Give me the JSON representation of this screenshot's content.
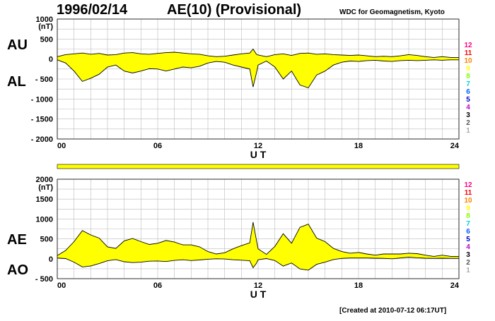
{
  "header": {
    "date": "1996/02/14",
    "title": "AE(10) (Provisional)",
    "source": "WDC for Geomagnetism, Kyoto"
  },
  "footer": {
    "created": "[Created at 2010-07-12 06:17UT]"
  },
  "station_labels": [
    "12",
    "11",
    "10",
    "9",
    "8",
    "7",
    "6",
    "5",
    "4",
    "3",
    "2",
    "1"
  ],
  "colors": {
    "fill": "#ffff00",
    "line": "#000000",
    "grid": "#bbbbbb",
    "station_colors": [
      "#ff0080",
      "#ff0000",
      "#ff8000",
      "#ffff00",
      "#80ff00",
      "#00d0d0",
      "#0060ff",
      "#0000c0",
      "#c000c0",
      "#000000",
      "#555555",
      "#aaaaaa"
    ]
  },
  "chart_data": [
    {
      "type": "area",
      "units_label": "(nT)",
      "xlabel": "U T",
      "xticks": [
        "00",
        "06",
        "12",
        "18",
        "24"
      ],
      "xlim": [
        0,
        24
      ],
      "ylim": [
        -2000,
        1000
      ],
      "yticks": [
        "1000",
        "500",
        "0",
        "- 500",
        "- 1000",
        "- 1500",
        "- 2000"
      ],
      "ytick_values": [
        1000,
        500,
        0,
        -500,
        -1000,
        -1500,
        -2000
      ],
      "series_labels": [
        "AU",
        "AL"
      ],
      "upper": {
        "name": "AU",
        "x": [
          0,
          0.5,
          1,
          1.5,
          2,
          2.5,
          3,
          3.5,
          4,
          4.5,
          5,
          5.5,
          6,
          6.5,
          7,
          7.5,
          8,
          8.5,
          9,
          9.5,
          10,
          10.5,
          11,
          11.5,
          11.7,
          11.9,
          12,
          12.5,
          13,
          13.5,
          14,
          14.5,
          15,
          15.5,
          16,
          16.5,
          17,
          17.5,
          18,
          18.5,
          19,
          19.5,
          20,
          20.5,
          21,
          21.5,
          22,
          22.5,
          23,
          23.5,
          24
        ],
        "y": [
          60,
          110,
          130,
          150,
          120,
          140,
          100,
          110,
          150,
          160,
          130,
          120,
          140,
          160,
          170,
          150,
          130,
          120,
          80,
          60,
          70,
          100,
          130,
          150,
          250,
          120,
          100,
          60,
          110,
          130,
          90,
          140,
          150,
          120,
          130,
          110,
          100,
          90,
          100,
          80,
          60,
          70,
          60,
          80,
          110,
          90,
          60,
          40,
          60,
          40,
          40
        ]
      },
      "lower": {
        "name": "AL",
        "x": [
          0,
          0.5,
          1,
          1.5,
          2,
          2.5,
          3,
          3.5,
          4,
          4.5,
          5,
          5.5,
          6,
          6.5,
          7,
          7.5,
          8,
          8.5,
          9,
          9.5,
          10,
          10.5,
          11,
          11.5,
          11.7,
          11.9,
          12,
          12.5,
          13,
          13.5,
          14,
          14.5,
          15,
          15.5,
          16,
          16.5,
          17,
          17.5,
          18,
          18.5,
          19,
          19.5,
          20,
          20.5,
          21,
          21.5,
          22,
          22.5,
          23,
          23.5,
          24
        ],
        "y": [
          -20,
          -100,
          -300,
          -560,
          -480,
          -380,
          -200,
          -150,
          -300,
          -350,
          -300,
          -240,
          -250,
          -300,
          -250,
          -200,
          -220,
          -180,
          -100,
          -60,
          -80,
          -150,
          -200,
          -250,
          -700,
          -350,
          -150,
          -50,
          -200,
          -500,
          -300,
          -650,
          -720,
          -400,
          -300,
          -150,
          -80,
          -50,
          -60,
          -40,
          -30,
          -50,
          -60,
          -40,
          -30,
          -40,
          -30,
          -20,
          -30,
          -20,
          -20
        ]
      }
    },
    {
      "type": "area",
      "units_label": "(nT)",
      "xlabel": "U T",
      "xticks": [
        "00",
        "06",
        "12",
        "18",
        "24"
      ],
      "xlim": [
        0,
        24
      ],
      "ylim": [
        -500,
        2000
      ],
      "yticks": [
        "2000",
        "1500",
        "1000",
        "500",
        "0",
        "- 500"
      ],
      "ytick_values": [
        2000,
        1500,
        1000,
        500,
        0,
        -500
      ],
      "series_labels": [
        "AE",
        "AO"
      ],
      "upper": {
        "name": "AE",
        "x": [
          0,
          0.5,
          1,
          1.5,
          2,
          2.5,
          3,
          3.5,
          4,
          4.5,
          5,
          5.5,
          6,
          6.5,
          7,
          7.5,
          8,
          8.5,
          9,
          9.5,
          10,
          10.5,
          11,
          11.5,
          11.7,
          11.9,
          12,
          12.5,
          13,
          13.5,
          14,
          14.5,
          15,
          15.5,
          16,
          16.5,
          17,
          17.5,
          18,
          18.5,
          19,
          19.5,
          20,
          20.5,
          21,
          21.5,
          22,
          22.5,
          23,
          23.5,
          24
        ],
        "y": [
          80,
          210,
          430,
          710,
          600,
          520,
          300,
          260,
          450,
          510,
          430,
          360,
          390,
          460,
          420,
          350,
          350,
          300,
          180,
          120,
          150,
          250,
          330,
          400,
          920,
          470,
          250,
          110,
          310,
          630,
          390,
          790,
          870,
          520,
          430,
          260,
          180,
          140,
          160,
          120,
          90,
          120,
          120,
          120,
          140,
          130,
          90,
          60,
          90,
          60,
          60
        ]
      },
      "lower": {
        "name": "AO",
        "x": [
          0,
          0.5,
          1,
          1.5,
          2,
          2.5,
          3,
          3.5,
          4,
          4.5,
          5,
          5.5,
          6,
          6.5,
          7,
          7.5,
          8,
          8.5,
          9,
          9.5,
          10,
          10.5,
          11,
          11.5,
          11.7,
          11.9,
          12,
          12.5,
          13,
          13.5,
          14,
          14.5,
          15,
          15.5,
          16,
          16.5,
          17,
          17.5,
          18,
          18.5,
          19,
          19.5,
          20,
          20.5,
          21,
          21.5,
          22,
          22.5,
          23,
          23.5,
          24
        ],
        "y": [
          20,
          5,
          -85,
          -205,
          -180,
          -120,
          -50,
          -20,
          -75,
          -95,
          -85,
          -60,
          -55,
          -70,
          -40,
          -25,
          -45,
          -30,
          -10,
          0,
          -5,
          -25,
          -35,
          -50,
          -225,
          -115,
          -25,
          5,
          -45,
          -185,
          -105,
          -255,
          -285,
          -140,
          -85,
          -20,
          10,
          20,
          20,
          20,
          15,
          10,
          0,
          20,
          40,
          25,
          15,
          10,
          15,
          10,
          10
        ]
      }
    }
  ]
}
